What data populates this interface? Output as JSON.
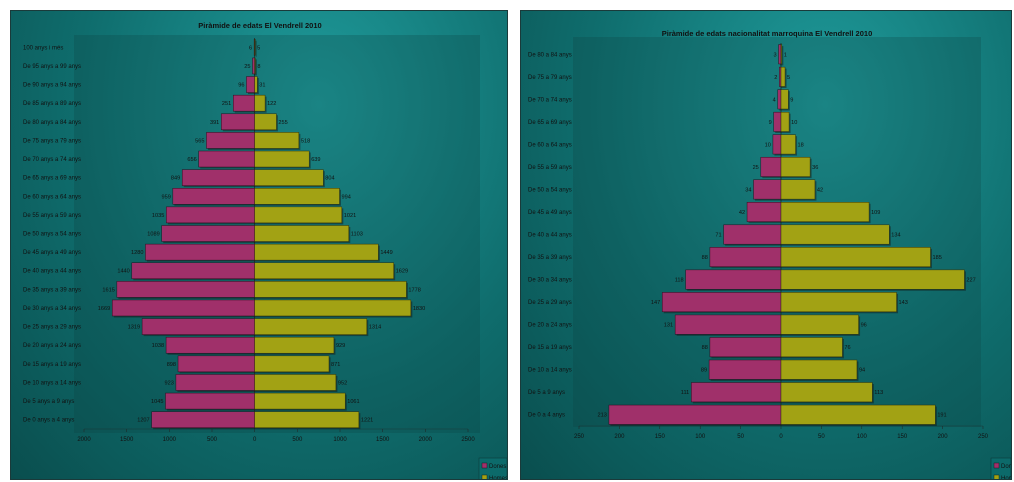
{
  "colors": {
    "dones": "#a0306a",
    "homes": "#a2a214"
  },
  "charts": [
    {
      "title": "Piràmide de edats El Vendrell 2010",
      "ticks": [
        "2000",
        "1500",
        "1000",
        "500",
        "0",
        "500",
        "1000",
        "1500",
        "2000",
        "2500"
      ],
      "legend": [
        "Dones",
        "Homes"
      ]
    },
    {
      "title": "Piràmide de edats  nacionalitat marroquina El Vendrell 2010",
      "ticks": [
        "250",
        "200",
        "150",
        "100",
        "50",
        "0",
        "50",
        "100",
        "150",
        "200",
        "250"
      ],
      "legend": [
        "Dones",
        "Homes"
      ]
    }
  ],
  "chart_data": [
    {
      "type": "bar",
      "orientation": "horizontal",
      "title": "Piràmide de edats El Vendrell 2010",
      "xlim": [
        -2000,
        2500
      ],
      "legend_position": "bottom-right",
      "categories": [
        "100 anys i més",
        "De 95 anys a 99 anys",
        "De 90 anys a 94 anys",
        "De 85 anys a 89 anys",
        "De 80 anys a 84 anys",
        "De 75 anys a 79 anys",
        "De 70 anys a 74 anys",
        "De 65 anys a 69 anys",
        "De 60 anys a 64 anys",
        "De 55 anys a 59 anys",
        "De 50 anys a 54 anys",
        "De 45 anys a 49 anys",
        "De 40 anys a 44 anys",
        "De 35 anys a 39 anys",
        "De 30 anys a 34 anys",
        "De 25 anys a 29 anys",
        "De 20 anys a 24 anys",
        "De 15 anys a 19 anys",
        "De 10 anys a 14 anys",
        "De 5 anys a 9 anys",
        "De 0 anys a 4 anys"
      ],
      "series": [
        {
          "name": "Dones",
          "values": [
            6,
            25,
            96,
            251,
            391,
            565,
            656,
            849,
            959,
            1035,
            1089,
            1280,
            1440,
            1615,
            1669,
            1319,
            1038,
            898,
            923,
            1045,
            1207
          ]
        },
        {
          "name": "Homes",
          "values": [
            5,
            8,
            31,
            122,
            255,
            518,
            639,
            804,
            994,
            1021,
            1103,
            1449,
            1629,
            1778,
            1830,
            1314,
            929,
            871,
            952,
            1061,
            1221
          ]
        }
      ]
    },
    {
      "type": "bar",
      "orientation": "horizontal",
      "title": "Piràmide de edats  nacionalitat marroquina El Vendrell 2010",
      "xlim": [
        -250,
        250
      ],
      "legend_position": "bottom-right",
      "categories": [
        "De 80 a 84 anys",
        "De 75 a 79 anys",
        "De 70 a 74 anys",
        "De 65 a 69 anys",
        "De 60 a 64 anys",
        "De 55 a 59 anys",
        "De 50 a 54 anys",
        "De 45 a 49 anys",
        "De 40 a 44 anys",
        "De 35 a 39 anys",
        "De 30 a 34 anys",
        "De 25 a 29 anys",
        "De 20 a 24 anys",
        "De 15 a 19 anys",
        "De 10 a 14 anys",
        "De 5 a 9 anys",
        "De 0 a 4 anys"
      ],
      "series": [
        {
          "name": "Dones",
          "values": [
            3,
            2,
            4,
            9,
            10,
            25,
            34,
            42,
            71,
            88,
            118,
            147,
            131,
            88,
            89,
            111,
            213
          ]
        },
        {
          "name": "Homes",
          "values": [
            1,
            5,
            9,
            10,
            18,
            36,
            42,
            109,
            134,
            185,
            227,
            143,
            96,
            76,
            94,
            113,
            191
          ]
        }
      ]
    }
  ]
}
